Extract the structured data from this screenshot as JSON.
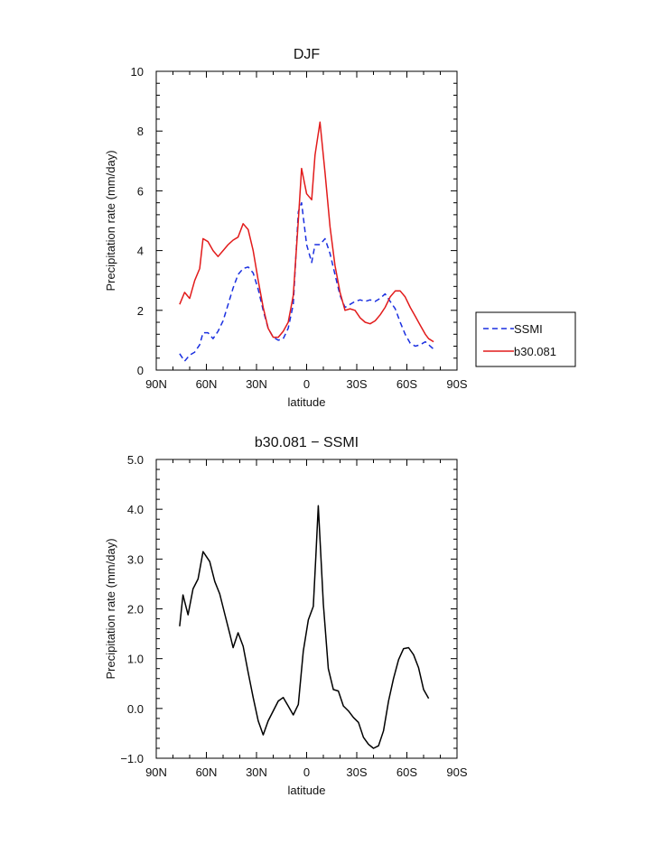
{
  "chart_data": [
    {
      "type": "line",
      "title": "DJF",
      "xlabel": "latitude",
      "ylabel": "Precipitation rate (mm/day)",
      "xlim": [
        90,
        -90
      ],
      "ylim": [
        0,
        10
      ],
      "xticks": [
        {
          "value": 90,
          "label": "90N"
        },
        {
          "value": 60,
          "label": "60N"
        },
        {
          "value": 30,
          "label": "30N"
        },
        {
          "value": 0,
          "label": "0"
        },
        {
          "value": -30,
          "label": "30S"
        },
        {
          "value": -60,
          "label": "60S"
        },
        {
          "value": -90,
          "label": "90S"
        }
      ],
      "yticks": [
        {
          "value": 0,
          "label": "0"
        },
        {
          "value": 2,
          "label": "2"
        },
        {
          "value": 4,
          "label": "4"
        },
        {
          "value": 6,
          "label": "6"
        },
        {
          "value": 8,
          "label": "8"
        },
        {
          "value": 10,
          "label": "10"
        }
      ],
      "legend_position": "right",
      "series": [
        {
          "name": "SSMI",
          "color": "#1a2fe0",
          "dash": true,
          "x": [
            76,
            73,
            70,
            67,
            64,
            62,
            59,
            56,
            53,
            50,
            47,
            44,
            41,
            38,
            35,
            32,
            29,
            26,
            23,
            20,
            17,
            14,
            11,
            8,
            5,
            3,
            0,
            -3,
            -5,
            -8,
            -11,
            -14,
            -17,
            -20,
            -23,
            -26,
            -29,
            -32,
            -35,
            -38,
            -41,
            -44,
            -47,
            -50,
            -53,
            -56,
            -59,
            -62,
            -65,
            -68,
            -71,
            -73,
            -76
          ],
          "values": [
            0.55,
            0.3,
            0.5,
            0.6,
            0.85,
            1.25,
            1.25,
            1.05,
            1.3,
            1.65,
            2.2,
            2.75,
            3.2,
            3.4,
            3.45,
            3.25,
            2.7,
            2.0,
            1.4,
            1.1,
            1.0,
            1.05,
            1.4,
            2.2,
            5.3,
            5.6,
            4.2,
            3.6,
            4.2,
            4.2,
            4.4,
            3.9,
            3.2,
            2.5,
            2.1,
            2.2,
            2.3,
            2.35,
            2.3,
            2.35,
            2.3,
            2.4,
            2.55,
            2.3,
            2.05,
            1.6,
            1.2,
            0.9,
            0.8,
            0.85,
            0.95,
            0.85,
            0.7
          ]
        },
        {
          "name": "b30.081",
          "color": "#e21b1b",
          "dash": false,
          "x": [
            76,
            73,
            70,
            67,
            64,
            62,
            59,
            56,
            53,
            50,
            47,
            44,
            41,
            38,
            35,
            32,
            29,
            26,
            23,
            20,
            17,
            14,
            11,
            8,
            5,
            3,
            0,
            -3,
            -5,
            -8,
            -11,
            -14,
            -17,
            -20,
            -23,
            -26,
            -29,
            -32,
            -35,
            -38,
            -41,
            -44,
            -47,
            -50,
            -53,
            -56,
            -59,
            -62,
            -65,
            -68,
            -71,
            -73,
            -76
          ],
          "values": [
            2.2,
            2.6,
            2.4,
            3.0,
            3.4,
            4.4,
            4.3,
            4.0,
            3.8,
            4.0,
            4.2,
            4.35,
            4.45,
            4.9,
            4.7,
            4.0,
            3.0,
            2.1,
            1.4,
            1.1,
            1.1,
            1.3,
            1.6,
            2.5,
            5.0,
            6.75,
            5.9,
            5.7,
            7.2,
            8.3,
            6.6,
            4.8,
            3.5,
            2.6,
            2.0,
            2.05,
            2.0,
            1.75,
            1.6,
            1.55,
            1.65,
            1.85,
            2.1,
            2.45,
            2.65,
            2.65,
            2.45,
            2.1,
            1.8,
            1.5,
            1.2,
            1.05,
            0.95
          ]
        }
      ]
    },
    {
      "type": "line",
      "title": "b30.081 − SSMI",
      "xlabel": "latitude",
      "ylabel": "Precipitation rate (mm/day)",
      "xlim": [
        90,
        -90
      ],
      "ylim": [
        -1.0,
        5.0
      ],
      "xticks": [
        {
          "value": 90,
          "label": "90N"
        },
        {
          "value": 60,
          "label": "60N"
        },
        {
          "value": 30,
          "label": "30N"
        },
        {
          "value": 0,
          "label": "0"
        },
        {
          "value": -30,
          "label": "30S"
        },
        {
          "value": -60,
          "label": "60S"
        },
        {
          "value": -90,
          "label": "90S"
        }
      ],
      "yticks": [
        {
          "value": -1.0,
          "label": "−1.0"
        },
        {
          "value": 0.0,
          "label": "0.0"
        },
        {
          "value": 1.0,
          "label": "1.0"
        },
        {
          "value": 2.0,
          "label": "2.0"
        },
        {
          "value": 3.0,
          "label": "3.0"
        },
        {
          "value": 4.0,
          "label": "4.0"
        },
        {
          "value": 5.0,
          "label": "5.0"
        }
      ],
      "series": [
        {
          "name": "b30.081 − SSMI",
          "color": "#000000",
          "dash": false,
          "x": [
            76,
            74,
            71,
            68,
            65,
            62,
            58,
            55,
            52,
            49,
            46,
            44,
            41,
            38,
            35,
            32,
            29,
            26,
            23,
            20,
            17,
            14,
            11,
            8,
            5,
            2,
            -1,
            -4,
            -5.5,
            -7,
            -10,
            -13,
            -16,
            -19,
            -22,
            -25,
            -28,
            -31,
            -34,
            -37,
            -40,
            -43,
            -46,
            -49,
            -52,
            -55,
            -58,
            -61,
            -64,
            -67,
            -70,
            -73
          ],
          "values": [
            1.65,
            2.28,
            1.88,
            2.4,
            2.6,
            3.15,
            2.95,
            2.55,
            2.3,
            1.9,
            1.5,
            1.22,
            1.52,
            1.25,
            0.72,
            0.22,
            -0.25,
            -0.53,
            -0.25,
            -0.05,
            0.15,
            0.22,
            0.05,
            -0.13,
            0.08,
            1.15,
            1.78,
            2.05,
            3.05,
            4.07,
            2.1,
            0.8,
            0.38,
            0.35,
            0.05,
            -0.05,
            -0.18,
            -0.28,
            -0.58,
            -0.72,
            -0.8,
            -0.75,
            -0.45,
            0.15,
            0.6,
            0.98,
            1.2,
            1.22,
            1.08,
            0.82,
            0.38,
            0.2
          ]
        }
      ]
    }
  ]
}
